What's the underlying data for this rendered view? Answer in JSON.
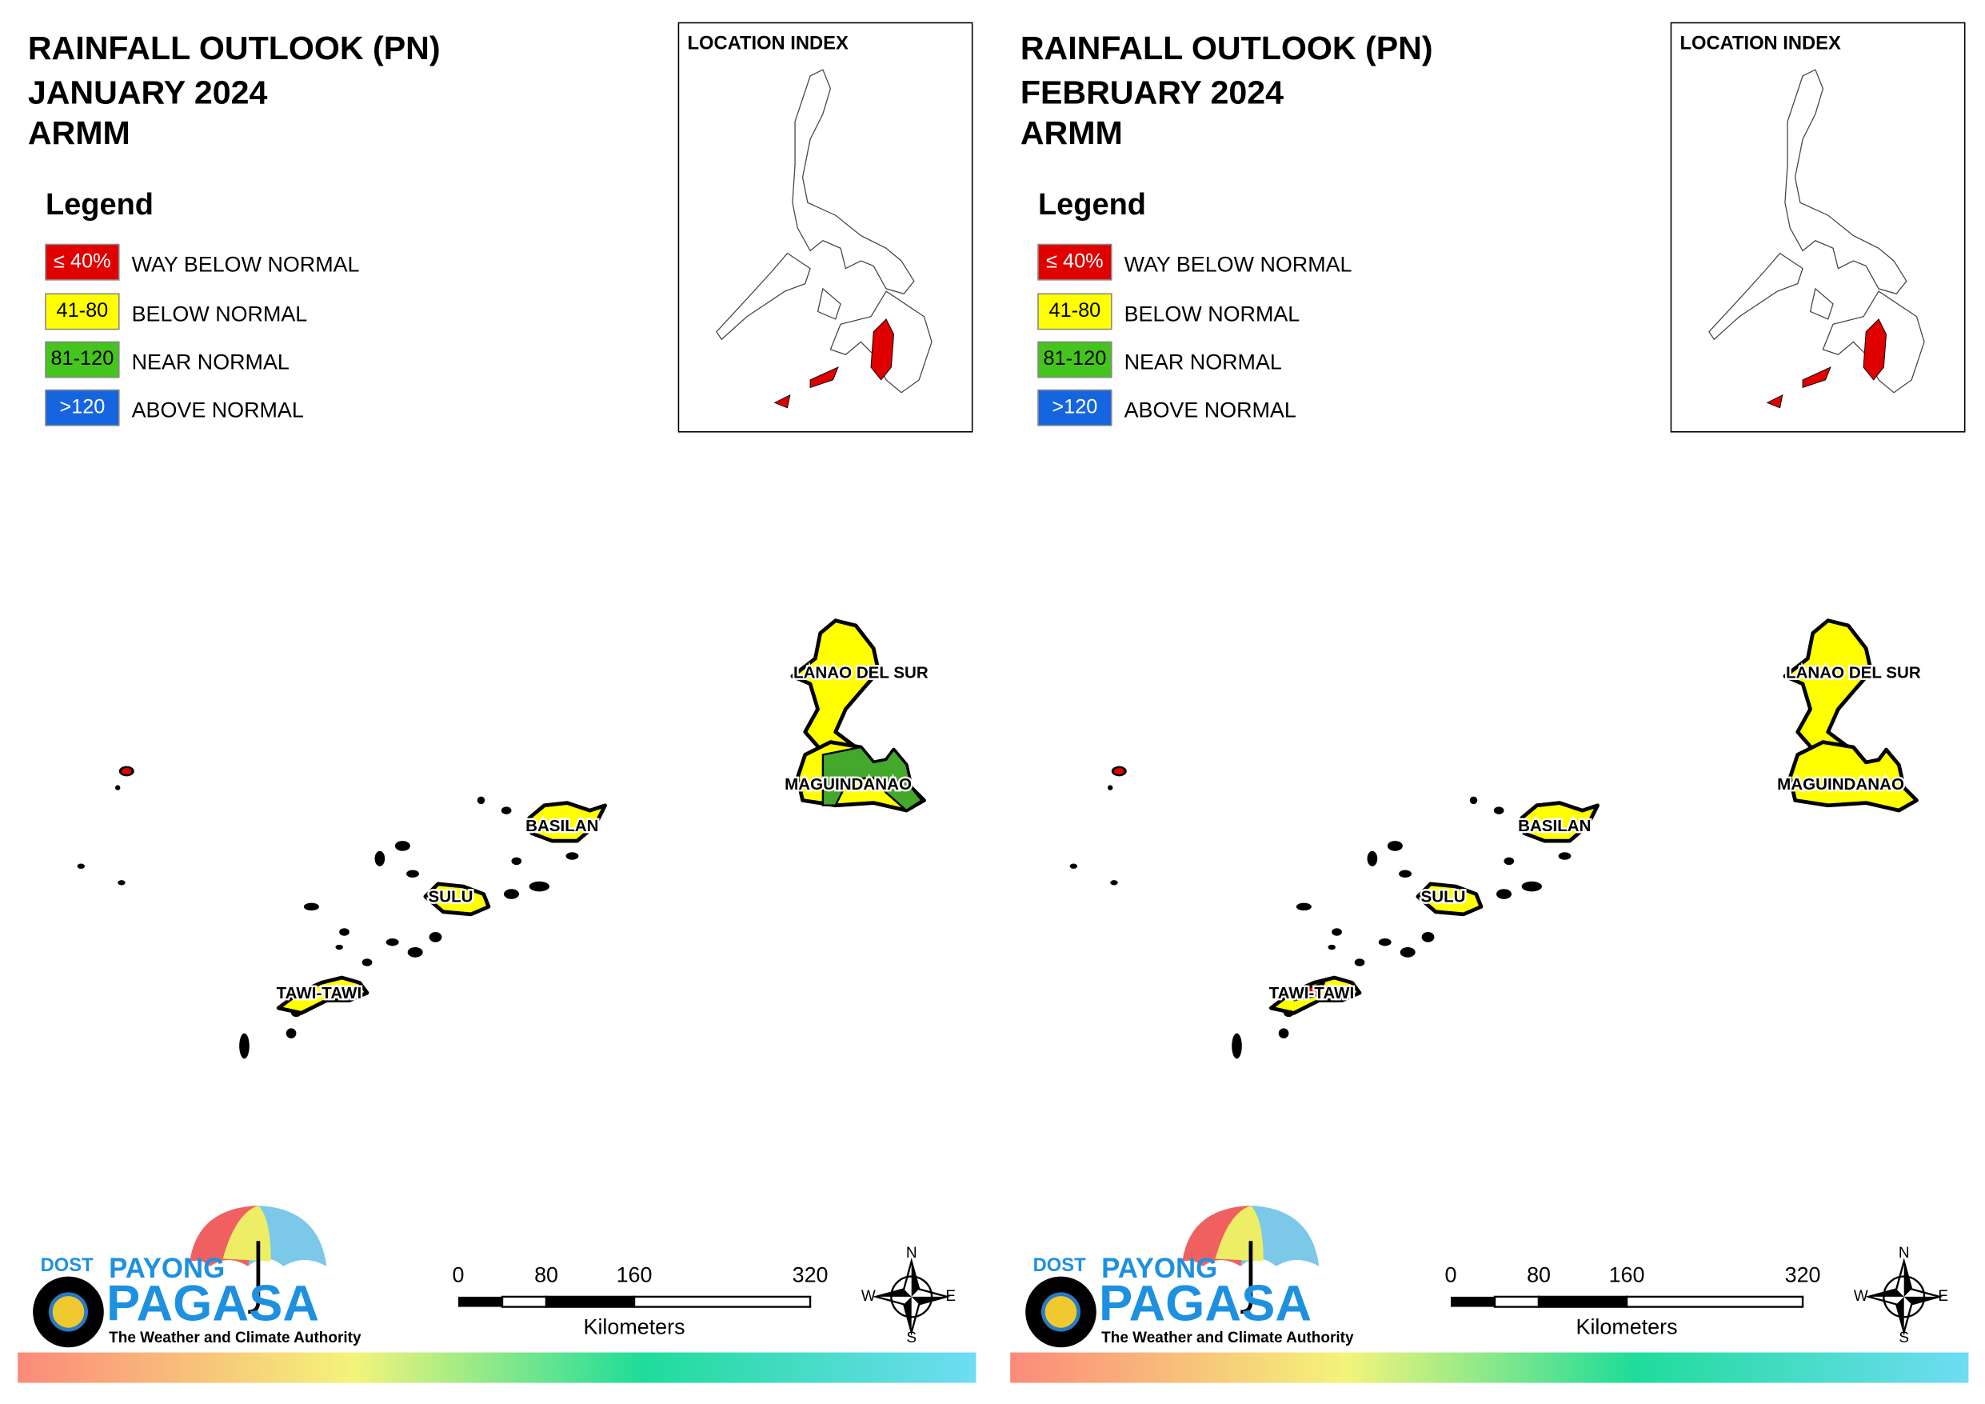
{
  "panels": [
    {
      "title": [
        "RAINFALL OUTLOOK (PN)",
        "JANUARY 2024",
        "ARMM"
      ],
      "location_index": "LOCATION INDEX",
      "legend_title": "Legend",
      "legend": [
        {
          "label": "≤ 40%",
          "text": "WAY BELOW NORMAL",
          "color": "#e00000"
        },
        {
          "label": "41-80",
          "text": "BELOW NORMAL",
          "color": "#ffff00"
        },
        {
          "label": "81-120",
          "text": "NEAR NORMAL",
          "color": "#44c41c"
        },
        {
          "label": ">120",
          "text": "ABOVE NORMAL",
          "color": "#1565e0"
        }
      ],
      "provinces": [
        {
          "name": "LANAO DEL SUR",
          "fill": [
            "#ffff00"
          ]
        },
        {
          "name": "MAGUINDANAO",
          "fill": [
            "#ffff00",
            "#44a82c"
          ]
        },
        {
          "name": "BASILAN",
          "fill": [
            "#ffff00"
          ]
        },
        {
          "name": "SULU",
          "fill": [
            "#ffff00"
          ]
        },
        {
          "name": "TAWI-TAWI",
          "fill": [
            "#ffff00"
          ]
        }
      ],
      "scale": {
        "ticks": [
          0,
          80,
          160,
          320
        ],
        "unit": "Kilometers"
      },
      "compass": {
        "n": "N",
        "e": "E",
        "s": "S",
        "w": "W"
      },
      "logo": {
        "dost": "DOST",
        "payong": "PAYONG",
        "pagasa": "PAGASA",
        "tagline": "The Weather and Climate Authority"
      }
    },
    {
      "title": [
        "RAINFALL OUTLOOK (PN)",
        "FEBRUARY 2024",
        "ARMM"
      ],
      "location_index": "LOCATION INDEX",
      "legend_title": "Legend",
      "legend": [
        {
          "label": "≤ 40%",
          "text": "WAY BELOW NORMAL",
          "color": "#e00000"
        },
        {
          "label": "41-80",
          "text": "BELOW NORMAL",
          "color": "#ffff00"
        },
        {
          "label": "81-120",
          "text": "NEAR NORMAL",
          "color": "#44c41c"
        },
        {
          "label": ">120",
          "text": "ABOVE NORMAL",
          "color": "#1565e0"
        }
      ],
      "provinces": [
        {
          "name": "LANAO DEL SUR",
          "fill": [
            "#ffff00"
          ]
        },
        {
          "name": "MAGUINDANAO",
          "fill": [
            "#ffff00"
          ]
        },
        {
          "name": "BASILAN",
          "fill": [
            "#ffff00"
          ]
        },
        {
          "name": "SULU",
          "fill": [
            "#ffff00"
          ]
        },
        {
          "name": "TAWI-TAWI",
          "fill": [
            "#ffff00",
            "#e00000"
          ]
        }
      ],
      "scale": {
        "ticks": [
          0,
          80,
          160,
          320
        ],
        "unit": "Kilometers"
      },
      "compass": {
        "n": "N",
        "e": "E",
        "s": "S",
        "w": "W"
      },
      "logo": {
        "dost": "DOST",
        "payong": "PAYONG",
        "pagasa": "PAGASA",
        "tagline": "The Weather and Climate Authority"
      }
    }
  ]
}
